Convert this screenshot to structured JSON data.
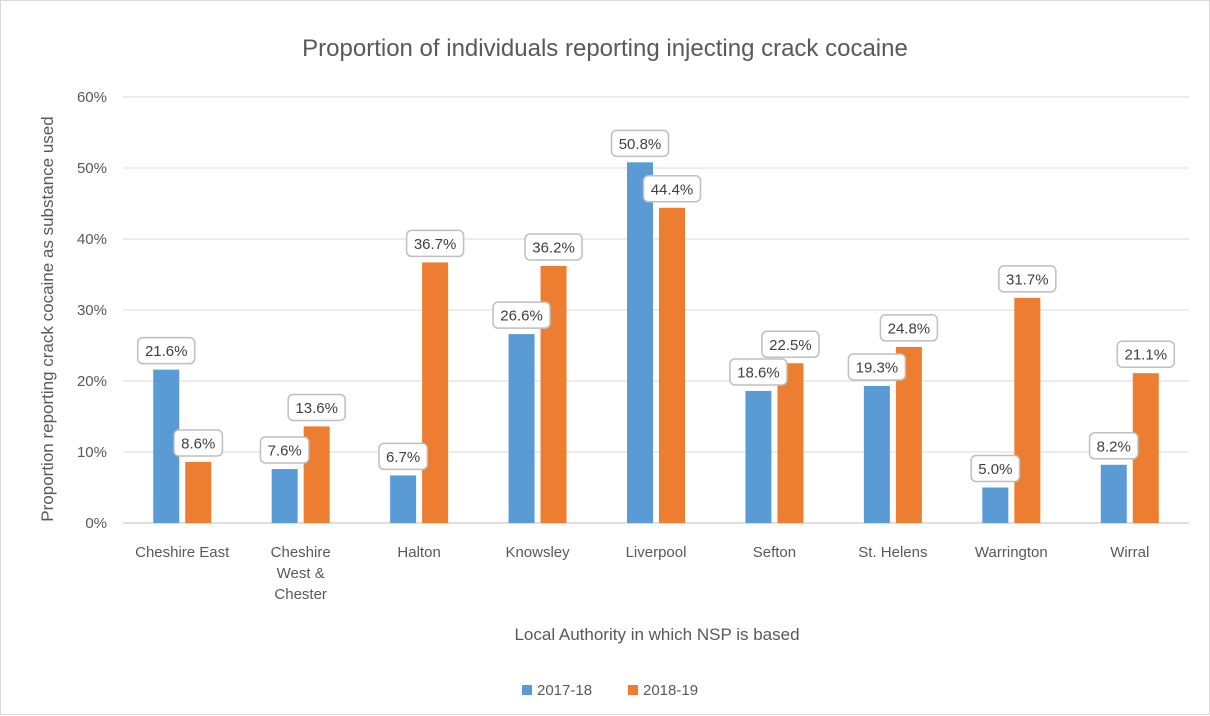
{
  "chart_data": {
    "type": "bar",
    "title": "Proportion of individuals reporting injecting crack cocaine",
    "xlabel": "Local Authority in which NSP is based",
    "ylabel": "Proportion reporting crack cocaine as substance used",
    "ylim": [
      0,
      60
    ],
    "yticks": [
      "0%",
      "10%",
      "20%",
      "30%",
      "40%",
      "50%",
      "60%"
    ],
    "categories": [
      [
        "Cheshire East"
      ],
      [
        "Cheshire",
        "West &",
        "Chester"
      ],
      [
        "Halton"
      ],
      [
        "Knowsley"
      ],
      [
        "Liverpool"
      ],
      [
        "Sefton"
      ],
      [
        "St. Helens"
      ],
      [
        "Warrington"
      ],
      [
        "Wirral"
      ]
    ],
    "series": [
      {
        "name": "2017-18",
        "color": "#5b9bd5",
        "values": [
          21.6,
          7.6,
          6.7,
          26.6,
          50.8,
          18.6,
          19.3,
          5.0,
          8.2
        ],
        "labels": [
          "21.6%",
          "7.6%",
          "6.7%",
          "26.6%",
          "50.8%",
          "18.6%",
          "19.3%",
          "5.0%",
          "8.2%"
        ]
      },
      {
        "name": "2018-19",
        "color": "#ed7d31",
        "values": [
          8.6,
          13.6,
          36.7,
          36.2,
          44.4,
          22.5,
          24.8,
          31.7,
          21.1
        ],
        "labels": [
          "8.6%",
          "13.6%",
          "36.7%",
          "36.2%",
          "44.4%",
          "22.5%",
          "24.8%",
          "31.7%",
          "21.1%"
        ]
      }
    ],
    "grid": true,
    "legend_position": "bottom"
  }
}
